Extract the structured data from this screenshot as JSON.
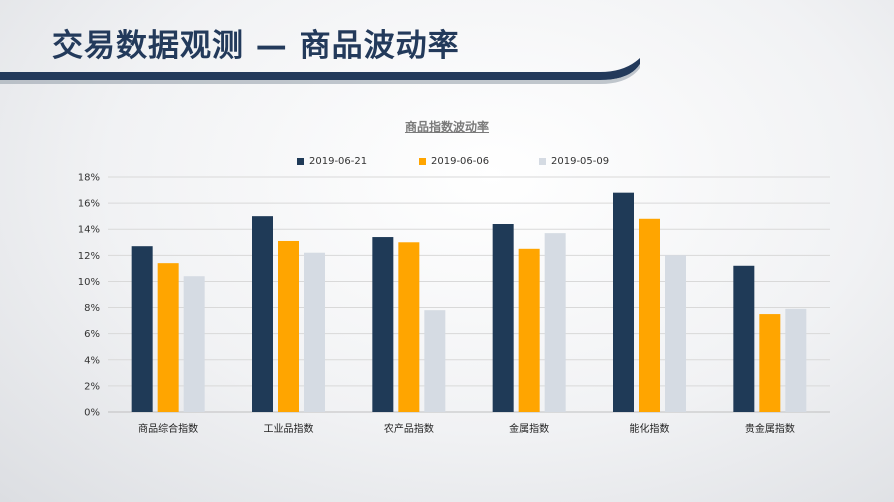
{
  "slide": {
    "title": "交易数据观测 — 商品波动率"
  },
  "colors": {
    "series1": "#1f3a57",
    "series2": "#ffa500",
    "series3": "#d5dbe3",
    "title": "#233a5b"
  },
  "chart_data": {
    "type": "bar",
    "title": "商品指数波动率",
    "xlabel": "",
    "ylabel": "",
    "categories": [
      "商品综合指数",
      "工业品指数",
      "农产品指数",
      "金属指数",
      "能化指数",
      "贵金属指数"
    ],
    "series": [
      {
        "name": "2019-06-21",
        "values": [
          12.7,
          15.0,
          13.4,
          14.4,
          16.8,
          11.2
        ]
      },
      {
        "name": "2019-06-06",
        "values": [
          11.4,
          13.1,
          13.0,
          12.5,
          14.8,
          7.5
        ]
      },
      {
        "name": "2019-05-09",
        "values": [
          10.4,
          12.2,
          7.8,
          13.7,
          12.0,
          7.9
        ]
      }
    ],
    "ylim": [
      0,
      18
    ],
    "yticks": [
      "0%",
      "2%",
      "4%",
      "6%",
      "8%",
      "10%",
      "12%",
      "14%",
      "16%",
      "18%"
    ],
    "grid": true,
    "legend": "top-center"
  }
}
